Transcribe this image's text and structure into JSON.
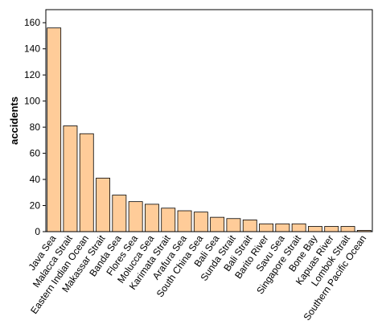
{
  "chart_data": {
    "type": "bar",
    "title": "",
    "xlabel": "",
    "ylabel": "accidents",
    "ylim": [
      0,
      170
    ],
    "yticks": [
      0,
      20,
      40,
      60,
      80,
      100,
      120,
      140,
      160
    ],
    "grid": false,
    "categories": [
      "Java Sea",
      "Malacca Strait",
      "Eastern Indian Ocean",
      "Makassar Strait",
      "Banda Sea",
      "Flores Sea",
      "Molucca Sea",
      "Karimata Strait",
      "Arafura Sea",
      "South China Sea",
      "Bali Sea",
      "Sunda Strait",
      "Bali Strait",
      "Barito River",
      "Savu Sea",
      "Singapore Strait",
      "Bone Bay",
      "Kapuas River",
      "Lombok Strait",
      "Southern Pacific Ocean"
    ],
    "values": [
      156,
      81,
      75,
      41,
      28,
      23,
      21,
      18,
      16,
      15,
      11,
      10,
      9,
      6,
      6,
      6,
      4,
      4,
      4,
      1
    ],
    "colors": {
      "bar": "#FFCC99",
      "edge": "#000000",
      "axis": "#000000"
    }
  }
}
